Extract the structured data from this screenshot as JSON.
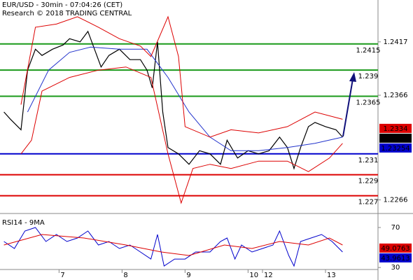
{
  "header": {
    "title": "EUR/USD - 30min - 07:04:26 (CET)",
    "subtitle": "Research © 2018 TRADING CENTRAL"
  },
  "chart_data": [
    {
      "type": "line",
      "xlim": [
        0,
        288
      ],
      "ylim": [
        1.2253,
        1.2457
      ],
      "yticks": [
        1.2417,
        1.2366,
        1.2266
      ],
      "xticks": [
        {
          "value": 45,
          "label": "7"
        },
        {
          "value": 93,
          "label": "8"
        },
        {
          "value": 141,
          "label": "9"
        },
        {
          "value": 189,
          "label": "10"
        },
        {
          "value": 200,
          "label": "12"
        },
        {
          "value": 248,
          "label": "13"
        }
      ],
      "levels": [
        {
          "value": 1.2415,
          "color": "#1a9a1a"
        },
        {
          "value": 1.239,
          "color": "#1a9a1a"
        },
        {
          "value": 1.2365,
          "color": "#1a9a1a"
        },
        {
          "value": 1.231,
          "color": "#0000cc"
        },
        {
          "value": 1.229,
          "color": "#dd0000"
        },
        {
          "value": 1.227,
          "color": "#dd0000"
        }
      ],
      "tags": [
        {
          "value": 1.2334,
          "color": "#dd0000"
        },
        {
          "value": 1.23265,
          "color": "#000000"
        },
        {
          "value": 1.23254,
          "color": "#0000cc"
        }
      ],
      "series": [
        {
          "color": "#000000",
          "x": [
            3,
            8,
            16,
            21,
            27,
            32,
            40,
            48,
            53,
            61,
            67,
            72,
            77,
            83,
            91,
            99,
            107,
            112,
            116,
            120,
            124,
            128,
            136,
            144,
            152,
            160,
            168,
            173,
            181,
            189,
            197,
            205,
            213,
            219,
            224,
            229,
            235,
            240,
            248,
            256,
            261
          ],
          "values": [
            1.235,
            1.2343,
            1.2333,
            1.239,
            1.241,
            1.2404,
            1.241,
            1.2414,
            1.242,
            1.2417,
            1.2427,
            1.241,
            1.2393,
            1.2404,
            1.241,
            1.24,
            1.24,
            1.239,
            1.2373,
            1.2417,
            1.235,
            1.2316,
            1.231,
            1.23,
            1.2313,
            1.231,
            1.23,
            1.2323,
            1.2306,
            1.2313,
            1.231,
            1.2313,
            1.2326,
            1.2316,
            1.2296,
            1.2316,
            1.2336,
            1.234,
            1.2336,
            1.2333,
            1.2326
          ]
        },
        {
          "color": "#2233cc",
          "x": [
            21,
            37,
            53,
            69,
            91,
            112,
            128,
            144,
            160,
            176,
            197,
            219,
            240,
            261
          ],
          "values": [
            1.235,
            1.239,
            1.2407,
            1.2412,
            1.241,
            1.241,
            1.2383,
            1.235,
            1.2326,
            1.2313,
            1.2313,
            1.2316,
            1.232,
            1.2326
          ]
        },
        {
          "color": "#dd0000",
          "x": [
            16,
            27,
            43,
            59,
            75,
            91,
            107,
            115,
            128,
            136,
            141,
            160,
            176,
            197,
            219,
            240,
            261
          ],
          "values": [
            1.2357,
            1.2431,
            1.2434,
            1.2441,
            1.2431,
            1.242,
            1.2413,
            1.2403,
            1.2441,
            1.2403,
            1.2336,
            1.2326,
            1.2333,
            1.233,
            1.2336,
            1.235,
            1.2343
          ]
        },
        {
          "color": "#dd0000",
          "x": [
            16,
            24,
            32,
            53,
            75,
            96,
            115,
            128,
            138,
            147,
            160,
            176,
            197,
            219,
            235,
            251,
            261
          ],
          "values": [
            1.231,
            1.2323,
            1.237,
            1.2383,
            1.239,
            1.2393,
            1.2383,
            1.231,
            1.2263,
            1.2296,
            1.23,
            1.2296,
            1.2303,
            1.2303,
            1.2293,
            1.2306,
            1.232
          ]
        }
      ]
    },
    {
      "type": "line",
      "title": "RSI14 - 9MA",
      "xlim": [
        0,
        288
      ],
      "ylim": [
        21,
        80.5
      ],
      "yticks": [
        70,
        30
      ],
      "tags": [
        {
          "value": 49.0763,
          "color": "#dd0000"
        },
        {
          "value": 43.9613,
          "color": "#0000cc"
        }
      ],
      "series": [
        {
          "color": "#0000cc",
          "x": [
            3,
            11,
            19,
            27,
            35,
            43,
            51,
            59,
            67,
            75,
            83,
            91,
            99,
            107,
            115,
            120,
            125,
            133,
            141,
            149,
            160,
            168,
            173,
            179,
            184,
            192,
            200,
            208,
            213,
            220,
            224,
            229,
            237,
            245,
            253,
            261
          ],
          "values": [
            56,
            49,
            66.5,
            70,
            56,
            63,
            56,
            59.5,
            66.5,
            52.5,
            56,
            49,
            52.5,
            45.5,
            38.4,
            63,
            31.4,
            38.4,
            38.4,
            45.5,
            45.5,
            56,
            59.5,
            38.4,
            52.5,
            45.5,
            49,
            52.5,
            66.5,
            42,
            31.4,
            56,
            59.5,
            63,
            56,
            45.5
          ]
        },
        {
          "color": "#dd0000",
          "x": [
            3,
            32,
            64,
            96,
            123,
            144,
            171,
            192,
            213,
            235,
            251,
            261
          ],
          "values": [
            52.5,
            63,
            59.5,
            52.5,
            45.5,
            42,
            52.5,
            49,
            56,
            52.5,
            59.5,
            52.5
          ]
        }
      ]
    }
  ]
}
